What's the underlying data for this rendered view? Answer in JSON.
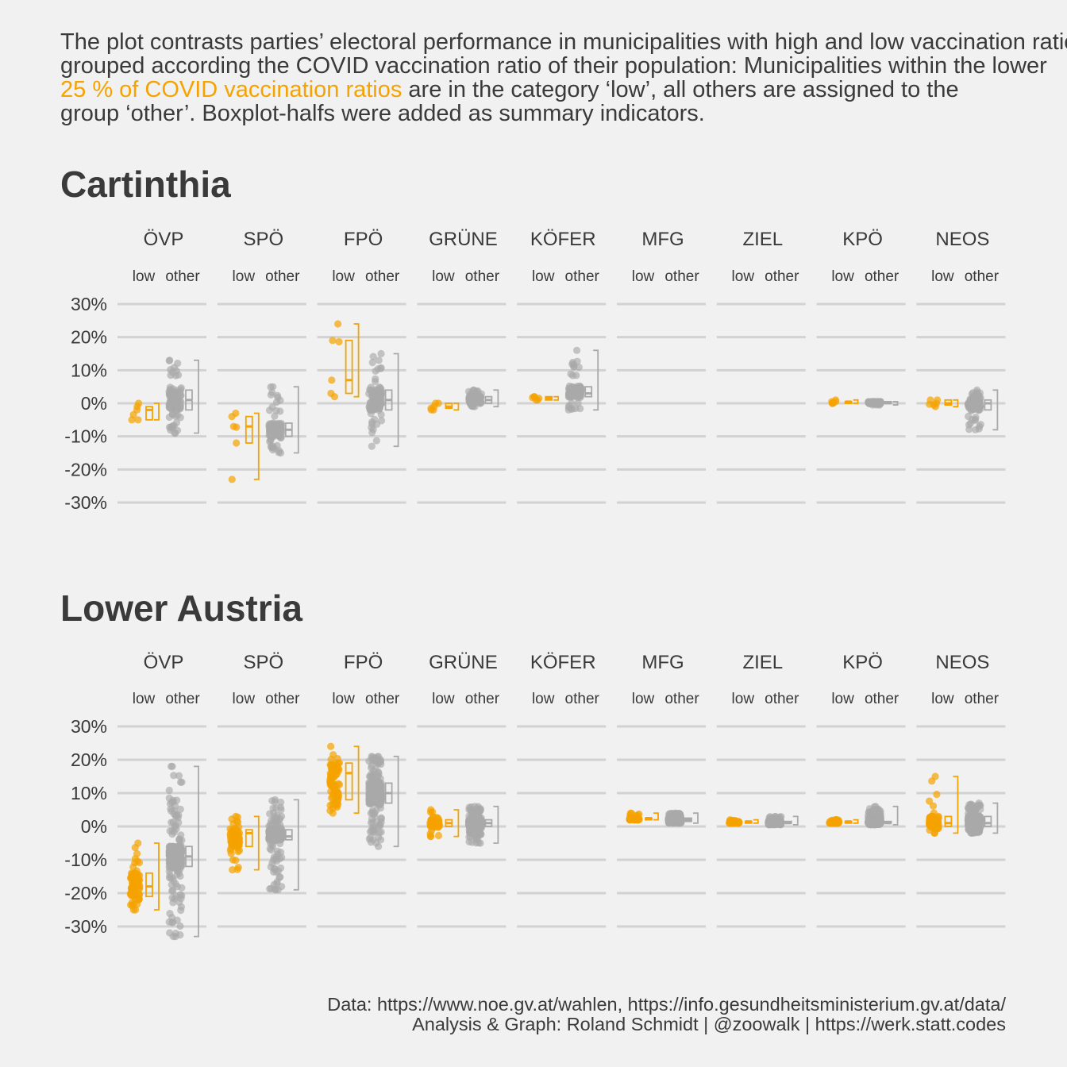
{
  "subtitle": {
    "line1": "The plot contrasts parties’ electoral performance in municipalities with high and low vaccination ratios. Municipalities were",
    "line2": "grouped according the COVID vaccination ratio of their population: Municipalities within the lower",
    "line3_highlight": "25 % of COVID vaccination ratios",
    "line3_rest": " are in the category ‘low’, all others are assigned to the",
    "line4": "group ‘other’. Boxplot-halfs were added as summary indicators."
  },
  "caption": {
    "line1": "Data: https://www.noe.gv.at/wahlen, https://info.gesundheitsministerium.gv.at/data/",
    "line2": "Analysis & Graph: Roland Schmidt | @zoowalk | https://werk.statt.codes"
  },
  "colors": {
    "low": "#f5a300",
    "other": "#a9a9a9",
    "background": "#f1f1f1",
    "grid": "#d2d2d2"
  },
  "chart_data": [
    {
      "type": "scatter",
      "title": "Cartinthia",
      "groups": [
        "low",
        "other"
      ],
      "yticks": [
        "30%",
        "20%",
        "10%",
        "0%",
        "-10%",
        "-20%",
        "-30%"
      ],
      "ylim": [
        -30,
        30
      ],
      "parties": [
        {
          "name": "ÖVP",
          "low": {
            "n": 6,
            "min": -5,
            "q1": -5,
            "median": -2,
            "q3": -1,
            "max": 0
          },
          "other": {
            "n": 120,
            "min": -9,
            "q1": -2,
            "median": 1,
            "q3": 4,
            "max": 13
          }
        },
        {
          "name": "SPÖ",
          "low": {
            "n": 6,
            "min": -23,
            "q1": -12,
            "median": -7,
            "q3": -4,
            "max": -3
          },
          "other": {
            "n": 120,
            "min": -15,
            "q1": -10,
            "median": -8,
            "q3": -6,
            "max": 5
          }
        },
        {
          "name": "FPÖ",
          "low": {
            "n": 6,
            "min": 2,
            "q1": 3,
            "median": 7,
            "q3": 19,
            "max": 24
          },
          "other": {
            "n": 120,
            "min": -13,
            "q1": -2,
            "median": 1,
            "q3": 4,
            "max": 15
          }
        },
        {
          "name": "GRÜNE",
          "low": {
            "n": 6,
            "min": -2,
            "q1": -1.5,
            "median": -1,
            "q3": 0,
            "max": 0
          },
          "other": {
            "n": 120,
            "min": -1,
            "q1": 0,
            "median": 1,
            "q3": 2,
            "max": 4
          }
        },
        {
          "name": "KÖFER",
          "low": {
            "n": 6,
            "min": 1,
            "q1": 1,
            "median": 1.5,
            "q3": 2,
            "max": 2
          },
          "other": {
            "n": 120,
            "min": -2,
            "q1": 2,
            "median": 3,
            "q3": 5,
            "max": 16
          }
        },
        {
          "name": "MFG",
          "low": null,
          "other": null
        },
        {
          "name": "ZIEL",
          "low": null,
          "other": null
        },
        {
          "name": "KPÖ",
          "low": {
            "n": 6,
            "min": 0,
            "q1": 0,
            "median": 0.5,
            "q3": 0.5,
            "max": 1
          },
          "other": {
            "n": 120,
            "min": -0.5,
            "q1": 0,
            "median": 0,
            "q3": 0.5,
            "max": 0.5
          }
        },
        {
          "name": "NEOS",
          "low": {
            "n": 6,
            "min": -1,
            "q1": -0.5,
            "median": 0,
            "q3": 1,
            "max": 1
          },
          "other": {
            "n": 120,
            "min": -8,
            "q1": -2,
            "median": 0,
            "q3": 1,
            "max": 4
          }
        }
      ]
    },
    {
      "type": "scatter",
      "title": "Lower Austria",
      "groups": [
        "low",
        "other"
      ],
      "yticks": [
        "30%",
        "20%",
        "10%",
        "0%",
        "-10%",
        "-20%",
        "-30%"
      ],
      "ylim": [
        -30,
        30
      ],
      "parties": [
        {
          "name": "ÖVP",
          "low": {
            "n": 80,
            "min": -25,
            "q1": -21,
            "median": -18,
            "q3": -14,
            "max": -5
          },
          "other": {
            "n": 400,
            "min": -33,
            "q1": -12,
            "median": -9,
            "q3": -6,
            "max": 18
          }
        },
        {
          "name": "SPÖ",
          "low": {
            "n": 80,
            "min": -13,
            "q1": -6,
            "median": -2,
            "q3": -1,
            "max": 3
          },
          "other": {
            "n": 400,
            "min": -19,
            "q1": -4,
            "median": -3,
            "q3": -1,
            "max": 8
          }
        },
        {
          "name": "FPÖ",
          "low": {
            "n": 80,
            "min": 4,
            "q1": 8,
            "median": 16,
            "q3": 19,
            "max": 24
          },
          "other": {
            "n": 400,
            "min": -6,
            "q1": 7,
            "median": 10,
            "q3": 13,
            "max": 21
          }
        },
        {
          "name": "GRÜNE",
          "low": {
            "n": 80,
            "min": -3,
            "q1": 0,
            "median": 1,
            "q3": 2,
            "max": 5
          },
          "other": {
            "n": 400,
            "min": -5,
            "q1": 0,
            "median": 1,
            "q3": 2,
            "max": 6
          }
        },
        {
          "name": "KÖFER",
          "low": null,
          "other": null
        },
        {
          "name": "MFG",
          "low": {
            "n": 80,
            "min": 2,
            "q1": 2,
            "median": 2.5,
            "q3": 2.5,
            "max": 4
          },
          "other": {
            "n": 400,
            "min": 1,
            "q1": 1.5,
            "median": 2,
            "q3": 2.5,
            "max": 4
          }
        },
        {
          "name": "ZIEL",
          "low": {
            "n": 80,
            "min": 1,
            "q1": 1,
            "median": 1.5,
            "q3": 1.5,
            "max": 2
          },
          "other": {
            "n": 400,
            "min": 0.5,
            "q1": 1,
            "median": 1,
            "q3": 1.5,
            "max": 3
          }
        },
        {
          "name": "KPÖ",
          "low": {
            "n": 80,
            "min": 1,
            "q1": 1,
            "median": 1.5,
            "q3": 1.5,
            "max": 2
          },
          "other": {
            "n": 400,
            "min": 0.5,
            "q1": 1,
            "median": 1,
            "q3": 1.5,
            "max": 6
          }
        },
        {
          "name": "NEOS",
          "low": {
            "n": 80,
            "min": -2,
            "q1": 0,
            "median": 1,
            "q3": 3,
            "max": 15
          },
          "other": {
            "n": 400,
            "min": -2,
            "q1": 0,
            "median": 1,
            "q3": 3,
            "max": 7
          }
        }
      ]
    }
  ]
}
